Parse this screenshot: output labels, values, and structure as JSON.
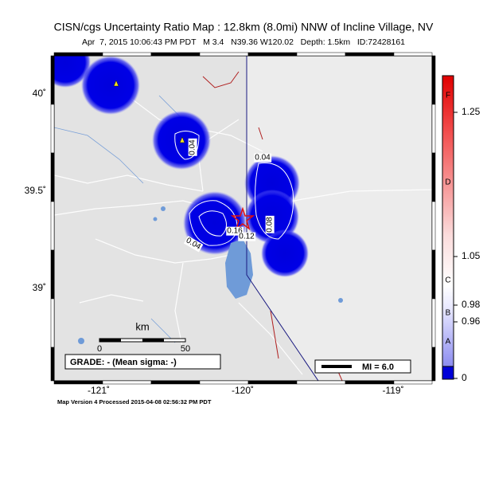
{
  "header": {
    "title": "CISN/cgs Uncertainty Ratio Map : 12.8km (8.0mi) NNW of Incline Village, NV",
    "subtitle": "Apr  7, 2015 10:06:43 PM PDT   M 3.4   N39.36 W120.02   Depth: 1.5km   ID:72428161"
  },
  "map": {
    "lat_labels": [
      "40˚",
      "39.5˚",
      "39˚"
    ],
    "lon_labels": [
      "-121˚",
      "-120˚",
      "-119˚"
    ],
    "contour_labels": [
      "0.04",
      "0.04",
      "0.04",
      "0.16",
      "0.12",
      "0.08"
    ],
    "scale": {
      "unit": "km",
      "start": "0",
      "end": "50"
    },
    "grade": "GRADE: - (Mean sigma: -)",
    "mi_legend": "MI = 6.0"
  },
  "colorbar": {
    "grades": [
      "F",
      "D",
      "C",
      "B",
      "A"
    ],
    "ticks": [
      "1.25",
      "1.05",
      "0.98",
      "0.96",
      "0"
    ]
  },
  "footer": "Map Version 4 Processed 2015-04-08 02:56:32 PM PDT"
}
